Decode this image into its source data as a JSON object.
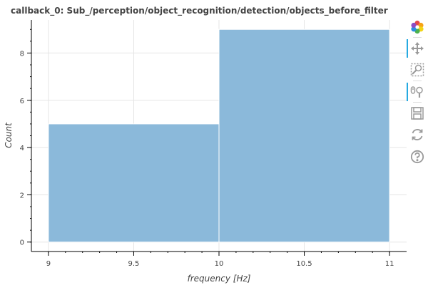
{
  "title": "callback_0: Sub_/perception/object_recognition/detection/objects_before_filter",
  "toolbar": [
    {
      "icon": "bokeh-logo-icon",
      "active": false
    },
    {
      "icon": "pan-move-icon",
      "active": true
    },
    {
      "icon": "box-zoom-icon",
      "active": false
    },
    {
      "icon": "wheel-zoom-icon",
      "active": true
    },
    {
      "icon": "save-icon",
      "active": false
    },
    {
      "icon": "reset-icon",
      "active": false
    },
    {
      "icon": "help-icon",
      "active": false
    }
  ],
  "chart_data": {
    "type": "bar",
    "title": "callback_0: Sub_/perception/object_recognition/detection/objects_before_filter",
    "xlabel": "frequency [Hz]",
    "ylabel": "Count",
    "bins": [
      {
        "x0": 9,
        "x1": 10,
        "value": 5
      },
      {
        "x0": 10,
        "x1": 11,
        "value": 9
      }
    ],
    "xlim": [
      8.9,
      11.1
    ],
    "ylim": [
      -0.4,
      9.4
    ],
    "xticks": [
      9,
      9.5,
      10,
      10.5,
      11
    ],
    "xtick_labels": [
      "9",
      "9.5",
      "10",
      "10.5",
      "11"
    ],
    "yticks": [
      0,
      2,
      4,
      6,
      8
    ],
    "ytick_labels": [
      "0",
      "2",
      "4",
      "6",
      "8"
    ],
    "grid": true,
    "legend": "none",
    "bar_color": "#8bb9da",
    "bar_edge_color": "#ffffff"
  }
}
